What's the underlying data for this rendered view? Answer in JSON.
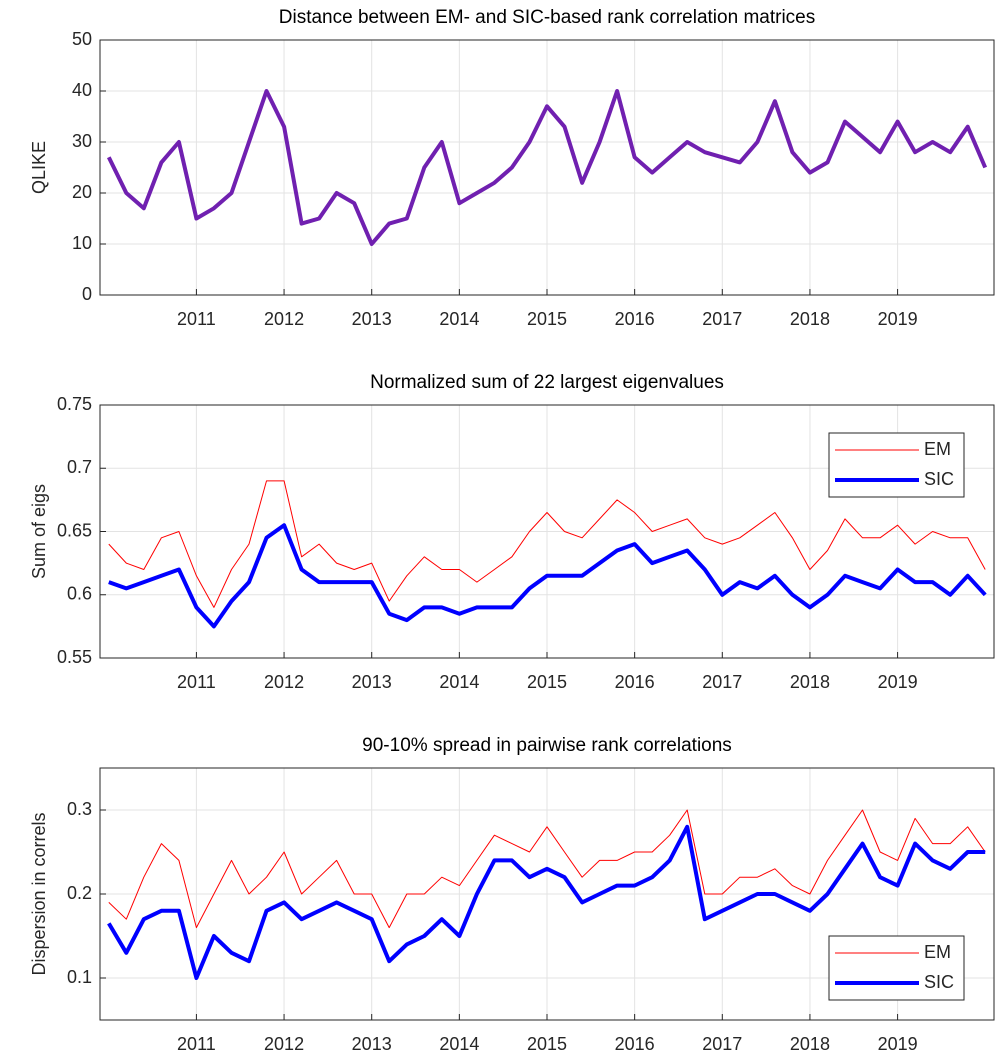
{
  "chart_data": [
    {
      "type": "line",
      "title": "Distance between EM- and SIC-based rank correlation matrices",
      "y_label": "QLIKE",
      "x": [
        2010,
        2010.2,
        2010.4,
        2010.6,
        2010.8,
        2011,
        2011.2,
        2011.4,
        2011.6,
        2011.8,
        2012,
        2012.2,
        2012.4,
        2012.6,
        2012.8,
        2013,
        2013.2,
        2013.4,
        2013.6,
        2013.8,
        2014,
        2014.2,
        2014.4,
        2014.6,
        2014.8,
        2015,
        2015.2,
        2015.4,
        2015.6,
        2015.8,
        2016,
        2016.2,
        2016.4,
        2016.6,
        2016.8,
        2017,
        2017.2,
        2017.4,
        2017.6,
        2017.8,
        2018,
        2018.2,
        2018.4,
        2018.6,
        2018.8,
        2019,
        2019.2,
        2019.4,
        2019.6,
        2019.8,
        2020
      ],
      "series": [
        {
          "color": "#7020b0",
          "width": 4,
          "values": [
            27,
            20,
            17,
            26,
            30,
            15,
            17,
            20,
            30,
            40,
            33,
            14,
            15,
            20,
            18,
            10,
            14,
            15,
            25,
            30,
            18,
            20,
            22,
            25,
            30,
            37,
            33,
            22,
            30,
            40,
            27,
            24,
            27,
            30,
            28,
            27,
            26,
            30,
            38,
            28,
            24,
            26,
            34,
            31,
            28,
            34,
            28,
            30,
            28,
            33,
            25
          ]
        }
      ],
      "xlim": [
        2009.9,
        2020.1
      ],
      "xticks": [
        2011,
        2012,
        2013,
        2014,
        2015,
        2016,
        2017,
        2018,
        2019
      ],
      "ylim": [
        0,
        50
      ],
      "yticks": [
        0,
        10,
        20,
        30,
        40,
        50
      ],
      "grid": true
    },
    {
      "type": "line",
      "title": "Normalized sum of 22 largest eigenvalues",
      "y_label": "Sum of eigs",
      "x": [
        2010,
        2010.2,
        2010.4,
        2010.6,
        2010.8,
        2011,
        2011.2,
        2011.4,
        2011.6,
        2011.8,
        2012,
        2012.2,
        2012.4,
        2012.6,
        2012.8,
        2013,
        2013.2,
        2013.4,
        2013.6,
        2013.8,
        2014,
        2014.2,
        2014.4,
        2014.6,
        2014.8,
        2015,
        2015.2,
        2015.4,
        2015.6,
        2015.8,
        2016,
        2016.2,
        2016.4,
        2016.6,
        2016.8,
        2017,
        2017.2,
        2017.4,
        2017.6,
        2017.8,
        2018,
        2018.2,
        2018.4,
        2018.6,
        2018.8,
        2019,
        2019.2,
        2019.4,
        2019.6,
        2019.8,
        2020
      ],
      "series": [
        {
          "name": "EM",
          "color": "#ff0000",
          "width": 1,
          "values": [
            0.64,
            0.625,
            0.62,
            0.645,
            0.65,
            0.615,
            0.59,
            0.62,
            0.64,
            0.69,
            0.69,
            0.63,
            0.64,
            0.625,
            0.62,
            0.625,
            0.595,
            0.615,
            0.63,
            0.62,
            0.62,
            0.61,
            0.62,
            0.63,
            0.65,
            0.665,
            0.65,
            0.645,
            0.66,
            0.675,
            0.665,
            0.65,
            0.655,
            0.66,
            0.645,
            0.64,
            0.645,
            0.655,
            0.665,
            0.645,
            0.62,
            0.635,
            0.66,
            0.645,
            0.645,
            0.655,
            0.64,
            0.65,
            0.645,
            0.645,
            0.62
          ]
        },
        {
          "name": "SIC",
          "color": "#0000ff",
          "width": 4,
          "values": [
            0.61,
            0.605,
            0.61,
            0.615,
            0.62,
            0.59,
            0.575,
            0.595,
            0.61,
            0.645,
            0.655,
            0.62,
            0.61,
            0.61,
            0.61,
            0.61,
            0.585,
            0.58,
            0.59,
            0.59,
            0.585,
            0.59,
            0.59,
            0.59,
            0.605,
            0.615,
            0.615,
            0.615,
            0.625,
            0.635,
            0.64,
            0.625,
            0.63,
            0.635,
            0.62,
            0.6,
            0.61,
            0.605,
            0.615,
            0.6,
            0.59,
            0.6,
            0.615,
            0.61,
            0.605,
            0.62,
            0.61,
            0.61,
            0.6,
            0.615,
            0.6
          ]
        }
      ],
      "xlim": [
        2009.9,
        2020.1
      ],
      "xticks": [
        2011,
        2012,
        2013,
        2014,
        2015,
        2016,
        2017,
        2018,
        2019
      ],
      "ylim": [
        0.55,
        0.75
      ],
      "yticks": [
        0.55,
        0.6,
        0.65,
        0.7,
        0.75
      ],
      "grid": true,
      "legend": "northeast"
    },
    {
      "type": "line",
      "title": "90-10% spread in pairwise rank correlations",
      "y_label": "Dispersion in correls",
      "x": [
        2010,
        2010.2,
        2010.4,
        2010.6,
        2010.8,
        2011,
        2011.2,
        2011.4,
        2011.6,
        2011.8,
        2012,
        2012.2,
        2012.4,
        2012.6,
        2012.8,
        2013,
        2013.2,
        2013.4,
        2013.6,
        2013.8,
        2014,
        2014.2,
        2014.4,
        2014.6,
        2014.8,
        2015,
        2015.2,
        2015.4,
        2015.6,
        2015.8,
        2016,
        2016.2,
        2016.4,
        2016.6,
        2016.8,
        2017,
        2017.2,
        2017.4,
        2017.6,
        2017.8,
        2018,
        2018.2,
        2018.4,
        2018.6,
        2018.8,
        2019,
        2019.2,
        2019.4,
        2019.6,
        2019.8,
        2020
      ],
      "series": [
        {
          "name": "EM",
          "color": "#ff0000",
          "width": 1,
          "values": [
            0.19,
            0.17,
            0.22,
            0.26,
            0.24,
            0.16,
            0.2,
            0.24,
            0.2,
            0.22,
            0.25,
            0.2,
            0.22,
            0.24,
            0.2,
            0.2,
            0.16,
            0.2,
            0.2,
            0.22,
            0.21,
            0.24,
            0.27,
            0.26,
            0.25,
            0.28,
            0.25,
            0.22,
            0.24,
            0.24,
            0.25,
            0.25,
            0.27,
            0.3,
            0.2,
            0.2,
            0.22,
            0.22,
            0.23,
            0.21,
            0.2,
            0.24,
            0.27,
            0.3,
            0.25,
            0.24,
            0.29,
            0.26,
            0.26,
            0.28,
            0.25
          ]
        },
        {
          "name": "SIC",
          "color": "#0000ff",
          "width": 4,
          "values": [
            0.165,
            0.13,
            0.17,
            0.18,
            0.18,
            0.1,
            0.15,
            0.13,
            0.12,
            0.18,
            0.19,
            0.17,
            0.18,
            0.19,
            0.18,
            0.17,
            0.12,
            0.14,
            0.15,
            0.17,
            0.15,
            0.2,
            0.24,
            0.24,
            0.22,
            0.23,
            0.22,
            0.19,
            0.2,
            0.21,
            0.21,
            0.22,
            0.24,
            0.28,
            0.17,
            0.18,
            0.19,
            0.2,
            0.2,
            0.19,
            0.18,
            0.2,
            0.23,
            0.26,
            0.22,
            0.21,
            0.26,
            0.24,
            0.23,
            0.25,
            0.25
          ]
        }
      ],
      "xlim": [
        2009.9,
        2020.1
      ],
      "xticks": [
        2011,
        2012,
        2013,
        2014,
        2015,
        2016,
        2017,
        2018,
        2019
      ],
      "ylim": [
        0.05,
        0.35
      ],
      "yticks": [
        0.1,
        0.2,
        0.3
      ],
      "grid": true,
      "legend": "southeast"
    }
  ]
}
